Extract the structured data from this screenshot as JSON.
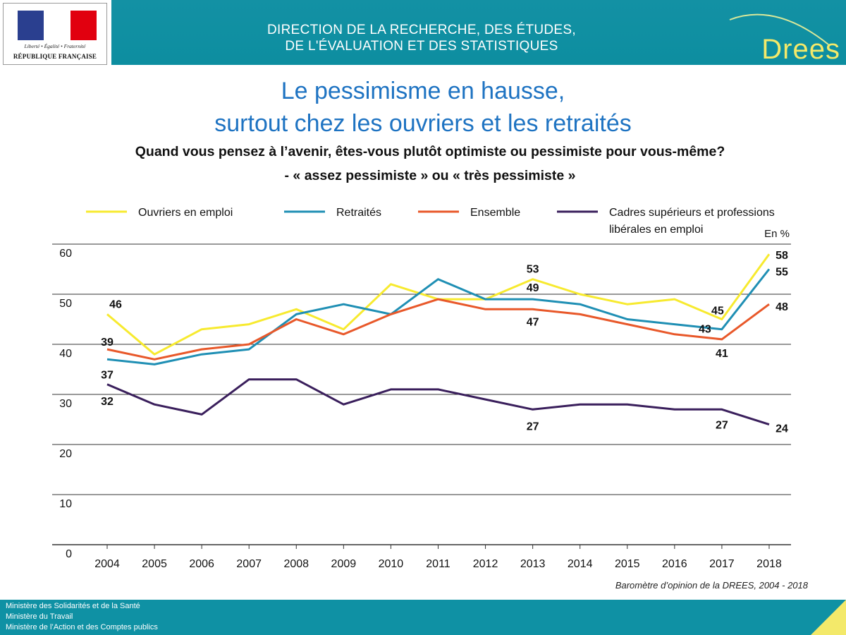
{
  "header": {
    "motto": "Liberté • Égalité • Fraternité",
    "republique": "RÉPUBLIQUE FRANÇAISE",
    "direction_line1": "DIRECTION DE LA RECHERCHE, DES ÉTUDES,",
    "direction_line2": "DE L'ÉVALUATION ET DES STATISTIQUES",
    "brand": "Drees"
  },
  "title": {
    "line1": "Le pessimisme en hausse,",
    "line2": "surtout chez les ouvriers et les retraités"
  },
  "question": {
    "line1": "Quand vous pensez à l’avenir, êtes-vous plutôt optimiste ou pessimiste pour vous-même?",
    "line2": "- « assez pessimiste » ou « très pessimiste »"
  },
  "chart_data": {
    "type": "line",
    "unit": "En %",
    "ylim": [
      0,
      60
    ],
    "yticks": [
      0,
      10,
      20,
      30,
      40,
      50,
      60
    ],
    "grid": true,
    "legend_position": "top",
    "x": [
      2004,
      2005,
      2006,
      2007,
      2008,
      2009,
      2010,
      2011,
      2012,
      2013,
      2014,
      2015,
      2016,
      2017,
      2018
    ],
    "series": [
      {
        "name": "Ouvriers en emploi",
        "color": "#f7ea2f",
        "values": [
          46,
          38,
          43,
          44,
          47,
          43,
          52,
          49,
          49,
          53,
          50,
          48,
          49,
          45,
          58
        ],
        "labels": [
          {
            "i": 0,
            "text": "46"
          },
          {
            "i": 9,
            "text": "53"
          },
          {
            "i": 13,
            "text": "45"
          },
          {
            "i": 14,
            "text": "58"
          }
        ]
      },
      {
        "name": "Retraités",
        "color": "#1f8fb4",
        "values": [
          37,
          36,
          38,
          39,
          46,
          48,
          46,
          53,
          49,
          49,
          48,
          45,
          44,
          43,
          55
        ],
        "labels": [
          {
            "i": 0,
            "text": "37"
          },
          {
            "i": 9,
            "text": "49"
          },
          {
            "i": 13,
            "text": "43"
          },
          {
            "i": 14,
            "text": "55"
          }
        ]
      },
      {
        "name": "Ensemble",
        "color": "#e8582a",
        "values": [
          39,
          37,
          39,
          40,
          45,
          42,
          46,
          49,
          47,
          47,
          46,
          44,
          42,
          41,
          48
        ],
        "labels": [
          {
            "i": 0,
            "text": "39"
          },
          {
            "i": 9,
            "text": "47"
          },
          {
            "i": 13,
            "text": "41"
          },
          {
            "i": 14,
            "text": "48"
          }
        ]
      },
      {
        "name": "Cadres supérieurs et professions libérales en emploi",
        "color": "#3a1f5c",
        "values": [
          32,
          28,
          26,
          33,
          33,
          28,
          31,
          31,
          29,
          27,
          28,
          28,
          27,
          27,
          24
        ],
        "labels": [
          {
            "i": 0,
            "text": "32"
          },
          {
            "i": 9,
            "text": "27"
          },
          {
            "i": 13,
            "text": "27"
          },
          {
            "i": 14,
            "text": "24"
          }
        ]
      }
    ],
    "legend_line1": [
      "Ouvriers en emploi",
      "Retraités",
      "Ensemble",
      "Cadres supérieurs et professions"
    ],
    "legend_line2": "libérales en emploi",
    "source": "Baromètre d’opinion de la DREES, 2004 - 2018"
  },
  "footer": {
    "line1": "Ministère des Solidarités et de la Santé",
    "line2": "Ministère du Travail",
    "line3": "Ministère de l’Action et des Comptes publics"
  }
}
